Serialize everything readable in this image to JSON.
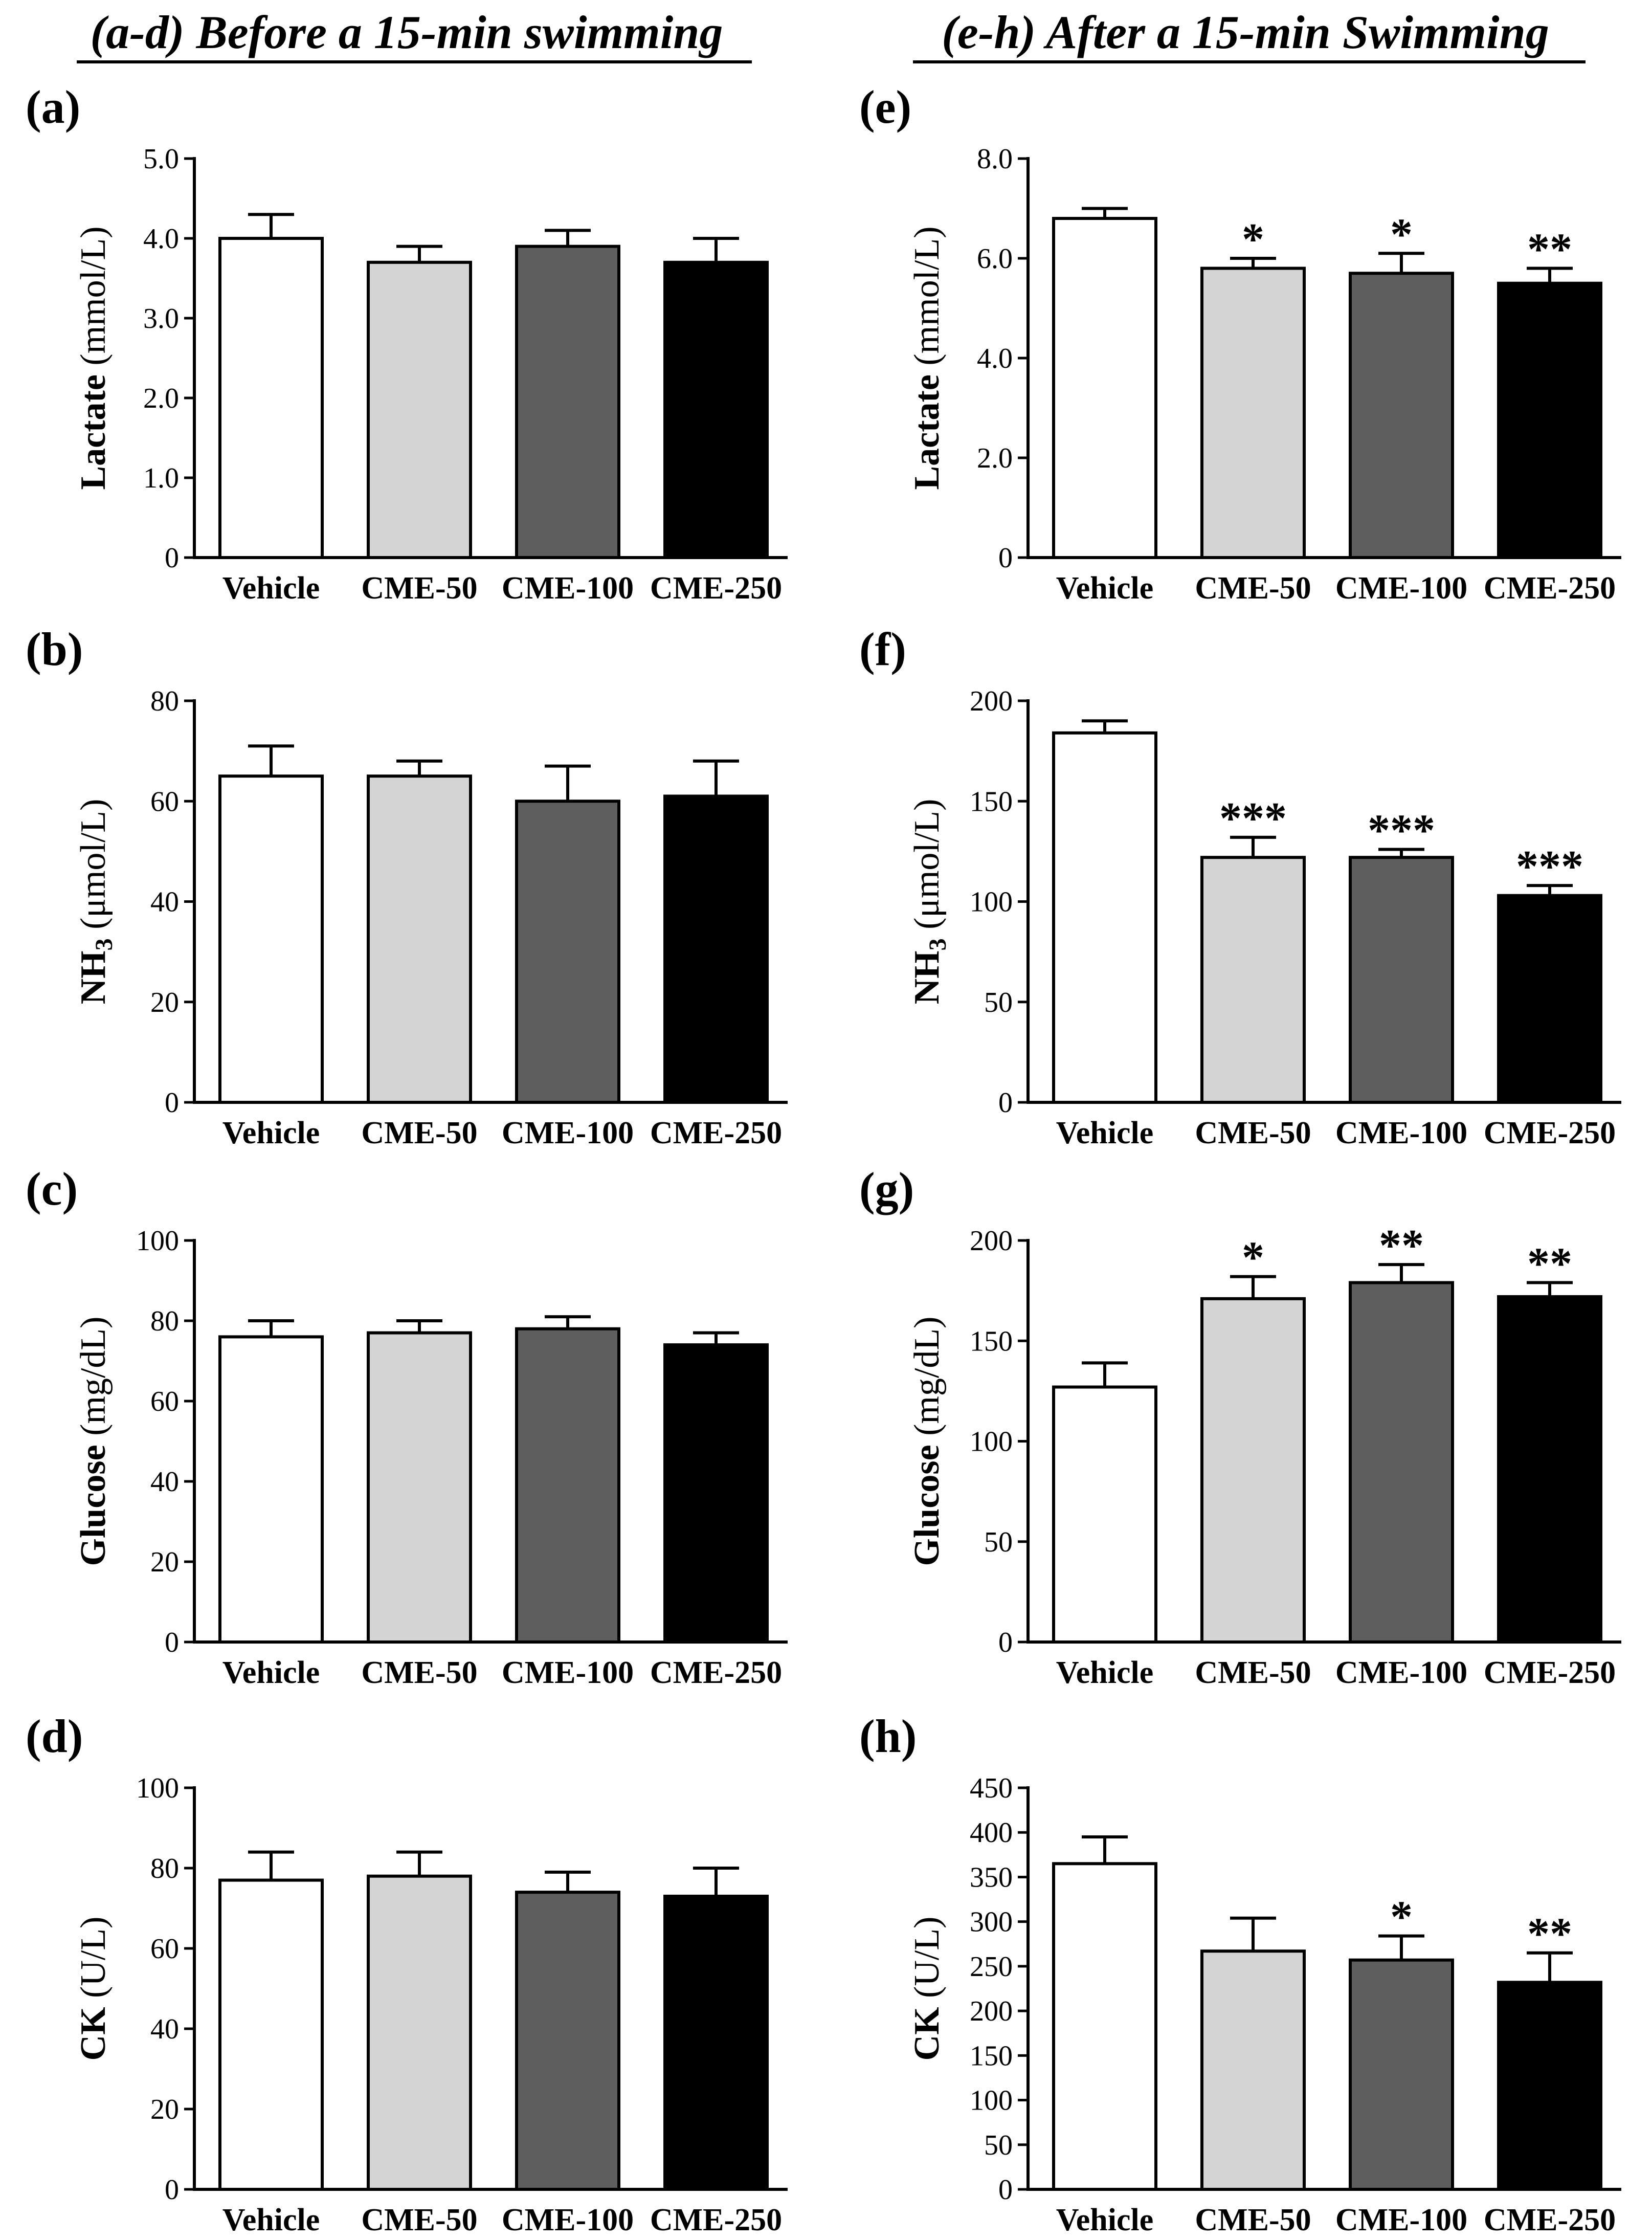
{
  "headers": {
    "left": "(a-d) Before a 15-min swimming",
    "right": "(e-h) After a 15-min Swimming"
  },
  "colors": {
    "Vehicle": "#ffffff",
    "CME-50": "#d4d4d4",
    "CME-100": "#5e5e5e",
    "CME-250": "#000000"
  },
  "chart_data": [
    {
      "panel": "(a)",
      "type": "bar",
      "ylabel_main": "Lactate",
      "ylabel_unit": "(mmol/L)",
      "categories": [
        "Vehicle",
        "CME-50",
        "CME-100",
        "CME-250"
      ],
      "values": [
        4.0,
        3.7,
        3.9,
        3.7
      ],
      "errors": [
        0.3,
        0.2,
        0.2,
        0.3
      ],
      "significance": [
        "",
        "",
        "",
        ""
      ],
      "ylim": [
        0,
        5.0
      ],
      "ticks": [
        0,
        1.0,
        2.0,
        3.0,
        4.0,
        5.0
      ],
      "tick_labels": [
        "0",
        "1.0",
        "2.0",
        "3.0",
        "4.0",
        "5.0"
      ]
    },
    {
      "panel": "(b)",
      "type": "bar",
      "ylabel_main": "NH3",
      "ylabel_unit": "(μmol/L)",
      "categories": [
        "Vehicle",
        "CME-50",
        "CME-100",
        "CME-250"
      ],
      "values": [
        65,
        65,
        60,
        61
      ],
      "errors": [
        6,
        3,
        7,
        7
      ],
      "significance": [
        "",
        "",
        "",
        ""
      ],
      "ylim": [
        0,
        80
      ],
      "ticks": [
        0,
        20,
        40,
        60,
        80
      ],
      "tick_labels": [
        "0",
        "20",
        "40",
        "60",
        "80"
      ]
    },
    {
      "panel": "(c)",
      "type": "bar",
      "ylabel_main": "Glucose",
      "ylabel_unit": "(mg/dL)",
      "categories": [
        "Vehicle",
        "CME-50",
        "CME-100",
        "CME-250"
      ],
      "values": [
        76,
        77,
        78,
        74
      ],
      "errors": [
        4,
        3,
        3,
        3
      ],
      "significance": [
        "",
        "",
        "",
        ""
      ],
      "ylim": [
        0,
        100
      ],
      "ticks": [
        0,
        20,
        40,
        60,
        80,
        100
      ],
      "tick_labels": [
        "0",
        "20",
        "40",
        "60",
        "80",
        "100"
      ]
    },
    {
      "panel": "(d)",
      "type": "bar",
      "ylabel_main": "CK",
      "ylabel_unit": "(U/L)",
      "categories": [
        "Vehicle",
        "CME-50",
        "CME-100",
        "CME-250"
      ],
      "values": [
        77,
        78,
        74,
        73
      ],
      "errors": [
        7,
        6,
        5,
        7
      ],
      "significance": [
        "",
        "",
        "",
        ""
      ],
      "ylim": [
        0,
        100
      ],
      "ticks": [
        0,
        20,
        40,
        60,
        80,
        100
      ],
      "tick_labels": [
        "0",
        "20",
        "40",
        "60",
        "80",
        "100"
      ]
    },
    {
      "panel": "(e)",
      "type": "bar",
      "ylabel_main": "Lactate",
      "ylabel_unit": "(mmol/L)",
      "categories": [
        "Vehicle",
        "CME-50",
        "CME-100",
        "CME-250"
      ],
      "values": [
        6.8,
        5.8,
        5.7,
        5.5
      ],
      "errors": [
        0.2,
        0.2,
        0.4,
        0.3
      ],
      "significance": [
        "",
        "*",
        "*",
        "**"
      ],
      "ylim": [
        0,
        8.0
      ],
      "ticks": [
        0,
        2.0,
        4.0,
        6.0,
        8.0
      ],
      "tick_labels": [
        "0",
        "2.0",
        "4.0",
        "6.0",
        "8.0"
      ]
    },
    {
      "panel": "(f)",
      "type": "bar",
      "ylabel_main": "NH3",
      "ylabel_unit": "(μmol/L)",
      "categories": [
        "Vehicle",
        "CME-50",
        "CME-100",
        "CME-250"
      ],
      "values": [
        184,
        122,
        122,
        103
      ],
      "errors": [
        6,
        10,
        4,
        5
      ],
      "significance": [
        "",
        "***",
        "***",
        "***"
      ],
      "ylim": [
        0,
        200
      ],
      "ticks": [
        0,
        50,
        100,
        150,
        200
      ],
      "tick_labels": [
        "0",
        "50",
        "100",
        "150",
        "200"
      ]
    },
    {
      "panel": "(g)",
      "type": "bar",
      "ylabel_main": "Glucose",
      "ylabel_unit": "(mg/dL)",
      "categories": [
        "Vehicle",
        "CME-50",
        "CME-100",
        "CME-250"
      ],
      "values": [
        127,
        171,
        179,
        172
      ],
      "errors": [
        12,
        11,
        9,
        7
      ],
      "significance": [
        "",
        "*",
        "**",
        "**"
      ],
      "ylim": [
        0,
        200
      ],
      "ticks": [
        0,
        50,
        100,
        150,
        200
      ],
      "tick_labels": [
        "0",
        "50",
        "100",
        "150",
        "200"
      ]
    },
    {
      "panel": "(h)",
      "type": "bar",
      "ylabel_main": "CK",
      "ylabel_unit": "(U/L)",
      "categories": [
        "Vehicle",
        "CME-50",
        "CME-100",
        "CME-250"
      ],
      "values": [
        365,
        267,
        257,
        232
      ],
      "errors": [
        30,
        37,
        27,
        33
      ],
      "significance": [
        "",
        "",
        "*",
        "**"
      ],
      "ylim": [
        0,
        450
      ],
      "ticks": [
        0,
        50,
        100,
        150,
        200,
        250,
        300,
        350,
        400,
        450
      ],
      "tick_labels": [
        "0",
        "50",
        "100",
        "150",
        "200",
        "250",
        "300",
        "350",
        "400",
        "450"
      ]
    }
  ]
}
